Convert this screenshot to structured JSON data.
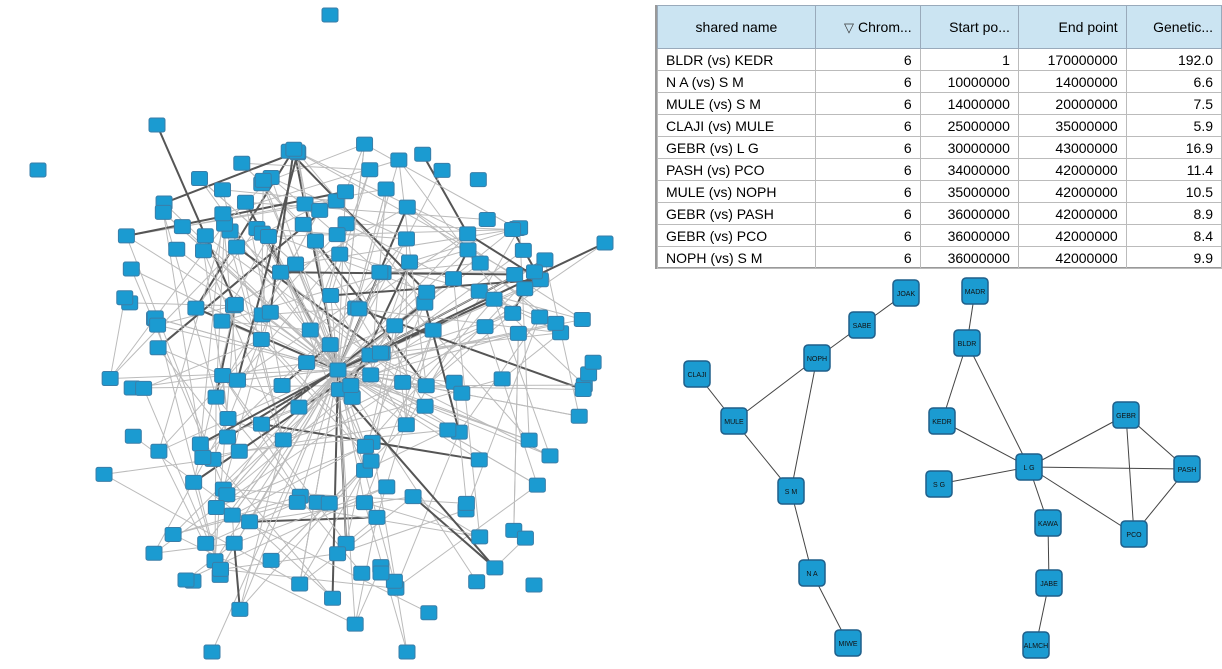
{
  "table": {
    "columns": [
      "shared name",
      "Chrom...",
      "Start po...",
      "End point",
      "Genetic..."
    ],
    "rows": [
      [
        "BLDR (vs) KEDR",
        "6",
        "1",
        "170000000",
        "192.0"
      ],
      [
        "N A (vs) S M",
        "6",
        "10000000",
        "14000000",
        "6.6"
      ],
      [
        "MULE (vs) S M",
        "6",
        "14000000",
        "20000000",
        "7.5"
      ],
      [
        "CLAJI (vs) MULE",
        "6",
        "25000000",
        "35000000",
        "5.9"
      ],
      [
        "GEBR (vs) L G",
        "6",
        "30000000",
        "43000000",
        "16.9"
      ],
      [
        "PASH (vs) PCO",
        "6",
        "34000000",
        "42000000",
        "11.4"
      ],
      [
        "MULE (vs) NOPH",
        "6",
        "35000000",
        "42000000",
        "10.5"
      ],
      [
        "GEBR (vs) PASH",
        "6",
        "36000000",
        "42000000",
        "8.9"
      ],
      [
        "GEBR (vs) PCO",
        "6",
        "36000000",
        "42000000",
        "8.4"
      ],
      [
        "NOPH (vs) S M",
        "6",
        "36000000",
        "42000000",
        "9.9"
      ]
    ]
  },
  "nodes": [
    {
      "label": "JOAK"
    },
    {
      "label": "SABE"
    },
    {
      "label": "NOPH"
    },
    {
      "label": "CLAJI"
    },
    {
      "label": "MULE"
    },
    {
      "label": "S M"
    },
    {
      "label": "N A"
    },
    {
      "label": "MIWE"
    },
    {
      "label": "MADR"
    },
    {
      "label": "BLDR"
    },
    {
      "label": "KEDR"
    },
    {
      "label": "S G"
    },
    {
      "label": "L G"
    },
    {
      "label": "GEBR"
    },
    {
      "label": "PASH"
    },
    {
      "label": "KAWA"
    },
    {
      "label": "PCO"
    },
    {
      "label": "JABE"
    },
    {
      "label": "ALMCH"
    }
  ]
}
